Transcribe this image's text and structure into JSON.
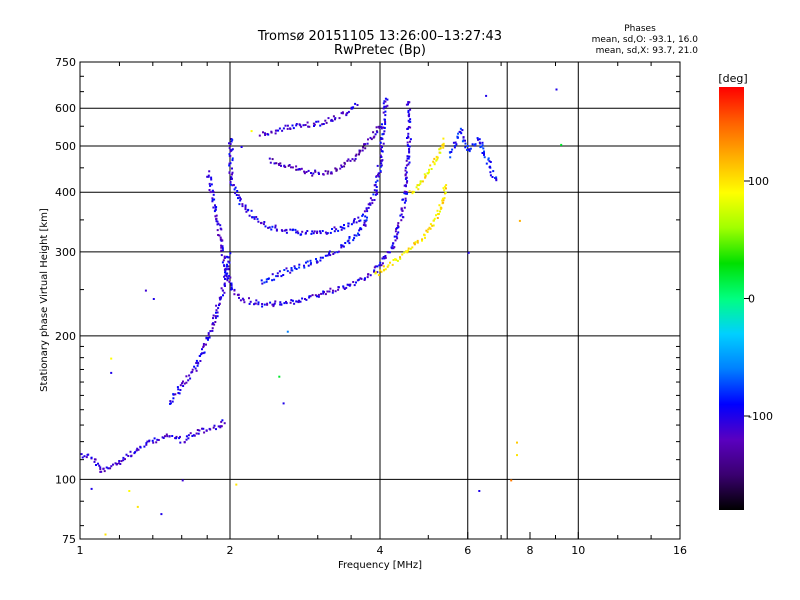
{
  "chart_data": {
    "type": "scatter",
    "title": "Tromsø 20151105 13:26:00–13:27:43",
    "subtitle": "RwPretec (Bp)",
    "xlabel": "Frequency [MHz]",
    "ylabel": "Stationary phase Virtual Height [km]",
    "x_scale": "log",
    "y_scale": "log",
    "xlim": [
      1,
      16
    ],
    "ylim": [
      75,
      750
    ],
    "x_ticks": [
      {
        "value": 1,
        "label": "1"
      },
      {
        "value": 2,
        "label": "2"
      },
      {
        "value": 4,
        "label": "4"
      },
      {
        "value": 6,
        "label": "6"
      },
      {
        "value": 8,
        "label": "8"
      },
      {
        "value": 10,
        "label": "10"
      },
      {
        "value": 16,
        "label": "16"
      }
    ],
    "y_ticks": [
      {
        "value": 75,
        "label": "75"
      },
      {
        "value": 100,
        "label": "100"
      },
      {
        "value": 200,
        "label": "200"
      },
      {
        "value": 300,
        "label": "300"
      },
      {
        "value": 400,
        "label": "400"
      },
      {
        "value": 500,
        "label": "500"
      },
      {
        "value": 600,
        "label": "600"
      },
      {
        "value": 750,
        "label": "750"
      }
    ],
    "x_gridlines": [
      2,
      4,
      6,
      7.2,
      10
    ],
    "y_gridlines": [
      100,
      200,
      300,
      400,
      500,
      600
    ],
    "grid": true,
    "stats": {
      "heading": "Phases",
      "line_o": "mean, sd,O: -93.1, 16.0",
      "line_x": "mean, sd,X:  93.7, 21.0"
    },
    "colorbar": {
      "label": "[deg]",
      "range": [
        -180,
        180
      ],
      "ticks": [
        {
          "value": 100,
          "label": "100"
        },
        {
          "value": 0,
          "label": "0"
        },
        {
          "value": -100,
          "label": "-100"
        }
      ],
      "colors": [
        "#000000",
        "#3a0070",
        "#5a00c0",
        "#0000ff",
        "#0080ff",
        "#00d0ff",
        "#00ff80",
        "#00e000",
        "#a0ff00",
        "#ffff00",
        "#ffb000",
        "#ff6000",
        "#ff0000"
      ]
    },
    "traces": [
      {
        "name": "",
        "phase": -110,
        "points": [
          [
            1.0,
            113
          ],
          [
            1.05,
            112
          ],
          [
            1.1,
            104
          ],
          [
            1.2,
            110
          ],
          [
            1.3,
            116
          ],
          [
            1.4,
            121
          ],
          [
            1.5,
            124
          ],
          [
            1.6,
            121
          ],
          [
            1.7,
            126
          ],
          [
            1.8,
            128
          ],
          [
            1.9,
            130
          ],
          [
            1.95,
            133
          ]
        ]
      },
      {
        "name": "",
        "phase": -105,
        "points": [
          [
            1.5,
            145
          ],
          [
            1.6,
            158
          ],
          [
            1.7,
            172
          ],
          [
            1.8,
            200
          ],
          [
            1.85,
            215
          ],
          [
            1.9,
            240
          ],
          [
            1.95,
            260
          ],
          [
            1.98,
            300
          ]
        ]
      },
      {
        "name": "",
        "phase": -105,
        "points": [
          [
            1.8,
            440
          ],
          [
            1.85,
            380
          ],
          [
            1.9,
            330
          ],
          [
            1.95,
            280
          ],
          [
            2.0,
            255
          ],
          [
            2.1,
            240
          ],
          [
            2.3,
            234
          ],
          [
            2.6,
            235
          ],
          [
            3.0,
            245
          ],
          [
            3.5,
            258
          ],
          [
            3.9,
            275
          ],
          [
            4.2,
            305
          ],
          [
            4.4,
            355
          ],
          [
            4.5,
            420
          ],
          [
            4.55,
            520
          ],
          [
            4.55,
            630
          ]
        ]
      },
      {
        "name": "",
        "phase": -100,
        "points": [
          [
            2.0,
            520
          ],
          [
            2.0,
            420
          ],
          [
            2.1,
            380
          ],
          [
            2.3,
            345
          ],
          [
            2.6,
            332
          ],
          [
            3.0,
            330
          ],
          [
            3.4,
            340
          ],
          [
            3.7,
            360
          ],
          [
            3.9,
            400
          ],
          [
            4.0,
            470
          ],
          [
            4.05,
            560
          ],
          [
            4.1,
            640
          ]
        ]
      },
      {
        "name": "",
        "phase": -95,
        "points": [
          [
            2.3,
            260
          ],
          [
            2.6,
            275
          ],
          [
            3.0,
            290
          ],
          [
            3.3,
            305
          ],
          [
            3.6,
            330
          ],
          [
            3.8,
            360
          ]
        ]
      },
      {
        "name": "",
        "phase": -120,
        "points": [
          [
            2.4,
            470
          ],
          [
            2.6,
            455
          ],
          [
            2.9,
            440
          ],
          [
            3.2,
            445
          ],
          [
            3.5,
            470
          ],
          [
            3.8,
            520
          ],
          [
            4.0,
            560
          ]
        ]
      },
      {
        "name": "",
        "phase": -110,
        "points": [
          [
            2.3,
            530
          ],
          [
            2.6,
            550
          ],
          [
            3.0,
            560
          ],
          [
            3.4,
            590
          ],
          [
            3.6,
            620
          ]
        ]
      },
      {
        "name": "",
        "phase": 100,
        "points": [
          [
            3.9,
            270
          ],
          [
            4.2,
            285
          ],
          [
            4.5,
            300
          ],
          [
            4.8,
            320
          ],
          [
            5.1,
            345
          ],
          [
            5.3,
            380
          ],
          [
            5.4,
            420
          ]
        ]
      },
      {
        "name": "",
        "phase": 95,
        "points": [
          [
            4.6,
            400
          ],
          [
            4.9,
            430
          ],
          [
            5.1,
            460
          ],
          [
            5.3,
            500
          ],
          [
            5.4,
            520
          ]
        ]
      },
      {
        "name": "",
        "phase": -90,
        "points": [
          [
            5.5,
            480
          ],
          [
            5.8,
            540
          ],
          [
            6.0,
            490
          ],
          [
            6.3,
            520
          ],
          [
            6.6,
            460
          ],
          [
            6.8,
            420
          ]
        ]
      }
    ],
    "scatter_points": [
      {
        "x": 1.15,
        "y": 168,
        "phase": -100
      },
      {
        "x": 1.35,
        "y": 250,
        "phase": -110
      },
      {
        "x": 1.4,
        "y": 240,
        "phase": -100
      },
      {
        "x": 1.15,
        "y": 180,
        "phase": 90
      },
      {
        "x": 1.05,
        "y": 96,
        "phase": -100
      },
      {
        "x": 1.25,
        "y": 95,
        "phase": 90
      },
      {
        "x": 1.3,
        "y": 88,
        "phase": 100
      },
      {
        "x": 1.12,
        "y": 77,
        "phase": 100
      },
      {
        "x": 1.45,
        "y": 85,
        "phase": -100
      },
      {
        "x": 1.6,
        "y": 100,
        "phase": -110
      },
      {
        "x": 2.05,
        "y": 98,
        "phase": 100
      },
      {
        "x": 2.5,
        "y": 165,
        "phase": 20
      },
      {
        "x": 2.55,
        "y": 145,
        "phase": -100
      },
      {
        "x": 2.6,
        "y": 205,
        "phase": -60
      },
      {
        "x": 7.5,
        "y": 120,
        "phase": 110
      },
      {
        "x": 7.5,
        "y": 113,
        "phase": 100
      },
      {
        "x": 6.3,
        "y": 95,
        "phase": -100
      },
      {
        "x": 7.3,
        "y": 100,
        "phase": 140
      },
      {
        "x": 9.0,
        "y": 660,
        "phase": -100
      },
      {
        "x": 9.2,
        "y": 505,
        "phase": 20
      },
      {
        "x": 6.5,
        "y": 640,
        "phase": -100
      },
      {
        "x": 7.6,
        "y": 350,
        "phase": 120
      },
      {
        "x": 6.0,
        "y": 300,
        "phase": -100
      },
      {
        "x": 2.2,
        "y": 540,
        "phase": 90
      },
      {
        "x": 2.1,
        "y": 500,
        "phase": -100
      }
    ]
  }
}
